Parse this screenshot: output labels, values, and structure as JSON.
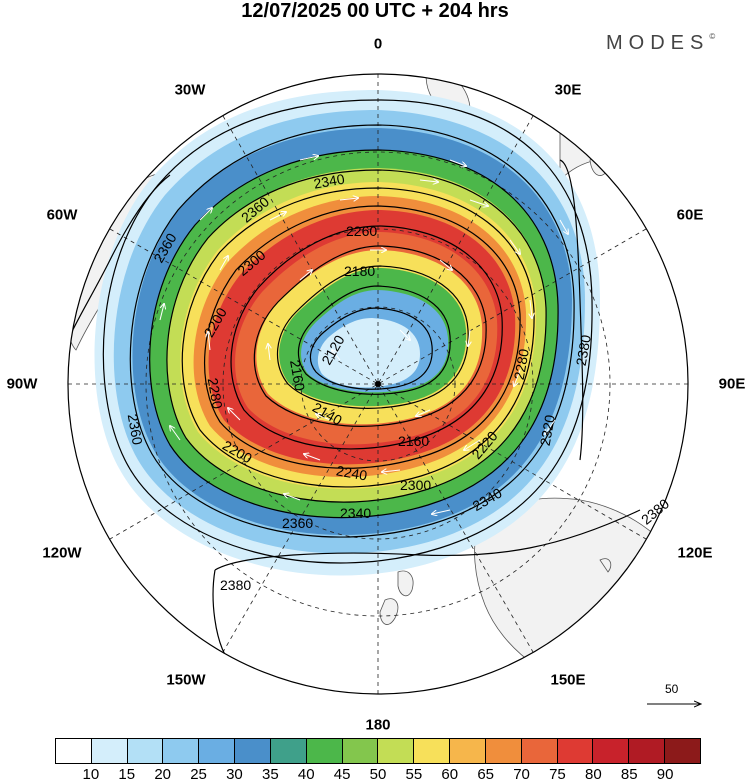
{
  "title": "12/07/2025  00 UTC  + 204 hrs",
  "brand": "MODES",
  "brand_mark": "©",
  "longitude_labels": {
    "l0": "0",
    "l30e": "30E",
    "l60e": "60E",
    "l90e": "90E",
    "l120e": "120E",
    "l150e": "150E",
    "l180": "180",
    "l150w": "150W",
    "l120w": "120W",
    "l90w": "90W",
    "l60w": "60W",
    "l30w": "30W"
  },
  "contour_labels": [
    {
      "id": "c2120",
      "text": "2120"
    },
    {
      "id": "c2140",
      "text": "2140"
    },
    {
      "id": "c2160a",
      "text": "2160"
    },
    {
      "id": "c2160b",
      "text": "2160"
    },
    {
      "id": "c2180",
      "text": "2180"
    },
    {
      "id": "c2200a",
      "text": "2200"
    },
    {
      "id": "c2200b",
      "text": "2200"
    },
    {
      "id": "c2220",
      "text": "2220"
    },
    {
      "id": "c2240",
      "text": "2240"
    },
    {
      "id": "c2260",
      "text": "2260"
    },
    {
      "id": "c2280a",
      "text": "2280"
    },
    {
      "id": "c2280b",
      "text": "2280"
    },
    {
      "id": "c2300",
      "text": "2300"
    },
    {
      "id": "c2300b",
      "text": "2300"
    },
    {
      "id": "c2320",
      "text": "2320"
    },
    {
      "id": "c2340a",
      "text": "2340"
    },
    {
      "id": "c2340b",
      "text": "2340"
    },
    {
      "id": "c2340c",
      "text": "2340"
    },
    {
      "id": "c2360a",
      "text": "2360"
    },
    {
      "id": "c2360b",
      "text": "2360"
    },
    {
      "id": "c2360c",
      "text": "2360"
    },
    {
      "id": "c2360d",
      "text": "2360"
    },
    {
      "id": "c2380a",
      "text": "2380"
    },
    {
      "id": "c2380b",
      "text": "2380"
    },
    {
      "id": "c2380c",
      "text": "2380"
    }
  ],
  "vector_reference": "50",
  "colorbar": {
    "colors": [
      "#ffffff",
      "#d4eefb",
      "#b3e0f6",
      "#8ecaef",
      "#6aaee3",
      "#4a8fca",
      "#3fa08a",
      "#4cb74a",
      "#83c64d",
      "#c3dd55",
      "#f7e05a",
      "#f6b64b",
      "#f08e3c",
      "#e9663a",
      "#de3a33",
      "#c8222b",
      "#b01b24",
      "#8c1a1a"
    ],
    "labels": [
      "10",
      "15",
      "20",
      "25",
      "30",
      "35",
      "40",
      "45",
      "50",
      "55",
      "60",
      "65",
      "70",
      "75",
      "80",
      "85",
      "90"
    ]
  }
}
